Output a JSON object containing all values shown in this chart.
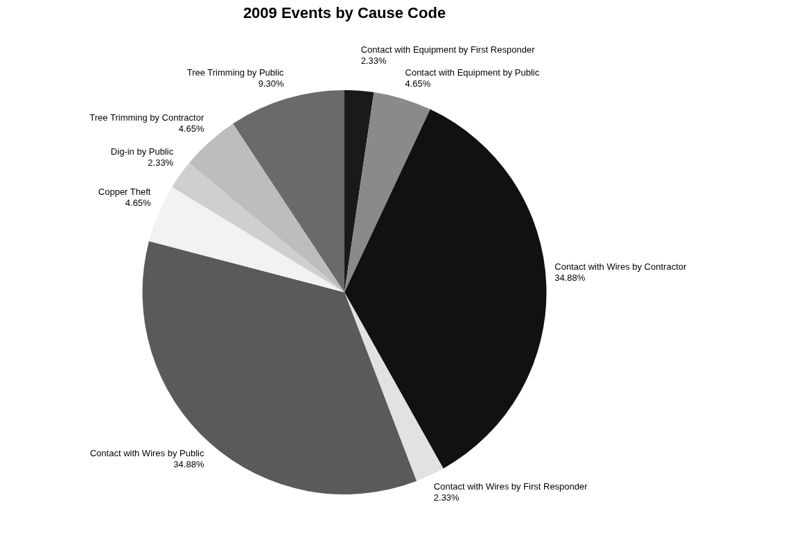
{
  "chart_data": {
    "type": "pie",
    "title": "2009 Events by Cause Code",
    "categories": [
      "Contact with Equipment by First Responder",
      "Contact with Equipment by Public",
      "Contact with Wires by Contractor",
      "Contact with Wires by First Responder",
      "Contact with Wires by Public",
      "Copper Theft",
      "Dig-in by Public",
      "Tree Trimming by Contractor",
      "Tree Trimming by Public"
    ],
    "values": [
      2.33,
      4.65,
      34.88,
      2.33,
      34.88,
      4.65,
      2.33,
      4.65,
      9.3
    ],
    "value_labels": [
      "2.33%",
      "4.65%",
      "34.88%",
      "2.33%",
      "34.88%",
      "4.65%",
      "2.33%",
      "4.65%",
      "9.30%"
    ],
    "colors": [
      "#1a1a1a",
      "#8a8a8a",
      "#111111",
      "#e2e2e2",
      "#5a5a5a",
      "#f2f2f2",
      "#cfcfcf",
      "#bdbdbd",
      "#6a6a6a"
    ],
    "legend": false
  }
}
